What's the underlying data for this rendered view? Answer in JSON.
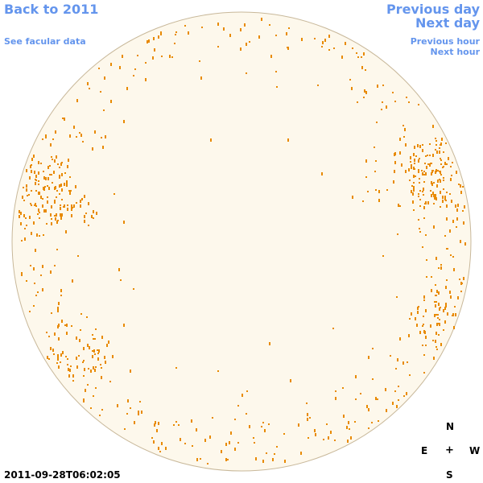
{
  "nav": {
    "back_label": "Back to 2011",
    "facular_label": "See facular data",
    "prev_day_label": "Previous day",
    "next_day_label": "Next day",
    "prev_hour_label": "Previous hour",
    "next_hour_label": "Next hour"
  },
  "compass": {
    "north": "N",
    "south": "S",
    "east": "E",
    "west": "W",
    "center": "+"
  },
  "timestamp": "2011-09-28T06:02:05",
  "colors": {
    "link": "#6495ed",
    "disk_fill": "#fdf8ec",
    "disk_outline": "#c8b89a",
    "facula": "#e88a00"
  }
}
